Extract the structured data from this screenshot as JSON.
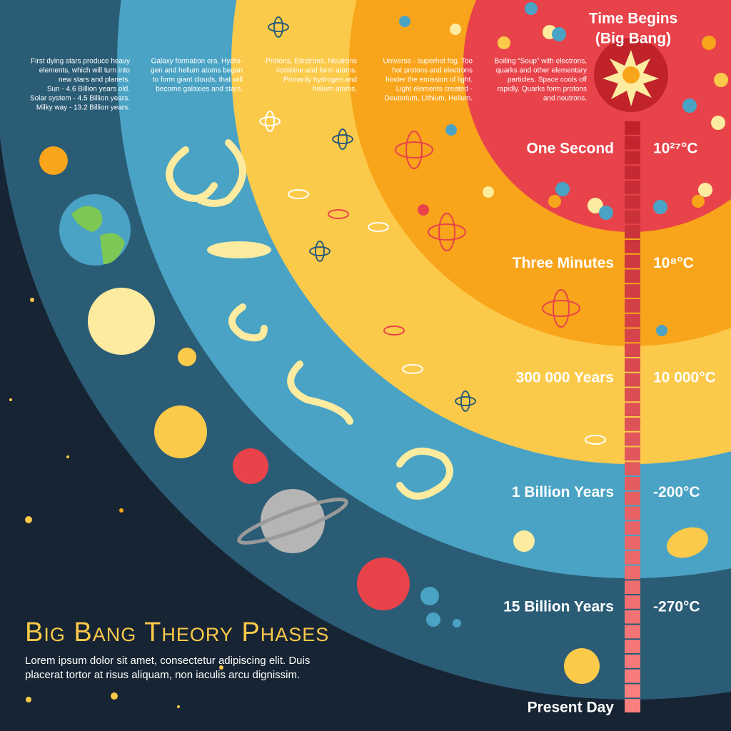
{
  "big_bang": {
    "lines": [
      "Time Begins",
      "(Big Bang)"
    ]
  },
  "descriptions": [
    {
      "lines": [
        "First dying stars produce heavy",
        "elements, which will turn into",
        "new stars and planets.",
        "Sun - 4.6 Billion years old.",
        "Solar system - 4.5 Billion years.",
        "Milky way - 13.2 Billion years."
      ]
    },
    {
      "lines": [
        "Galaxy formation era. Hydro-",
        "gen and helium atoms began",
        "to form giant clouds, that will",
        "become galaxies and stars."
      ]
    },
    {
      "lines": [
        "Protons, Electrons, Neutrons",
        "combine and form atoms.",
        "Primarily hydrogen and",
        "helium atoms."
      ]
    },
    {
      "lines": [
        "Universe - superhot fog. Too",
        "hot protons and electrons",
        "hinder the emission of light.",
        "Light elements created -",
        "Deuterium, Lithium, Helium."
      ]
    },
    {
      "lines": [
        "Boiling “Soup” with electrons,",
        "quarks and other elementary",
        "particles. Space cools off",
        "rapidly. Quarks form protons",
        "and neutrons."
      ]
    }
  ],
  "phases": [
    {
      "time": "One Second",
      "temperature": "10²⁷°C"
    },
    {
      "time": "Three Minutes",
      "temperature": "10⁸°C"
    },
    {
      "time": "300 000 Years",
      "temperature": "10 000°C"
    },
    {
      "time": "1 Billion Years",
      "temperature": "-200°C"
    },
    {
      "time": "15 Billion Years",
      "temperature": "-270°C"
    }
  ],
  "present_day": "Present Day",
  "title": "Big Bang Theory Phases",
  "subtitle": {
    "lines": [
      "Lorem ipsum dolor sit amet, consectetur adipiscing elit. Duis",
      "placerat tortor at risus aliquam, non iaculis arcu dignissim."
    ]
  }
}
